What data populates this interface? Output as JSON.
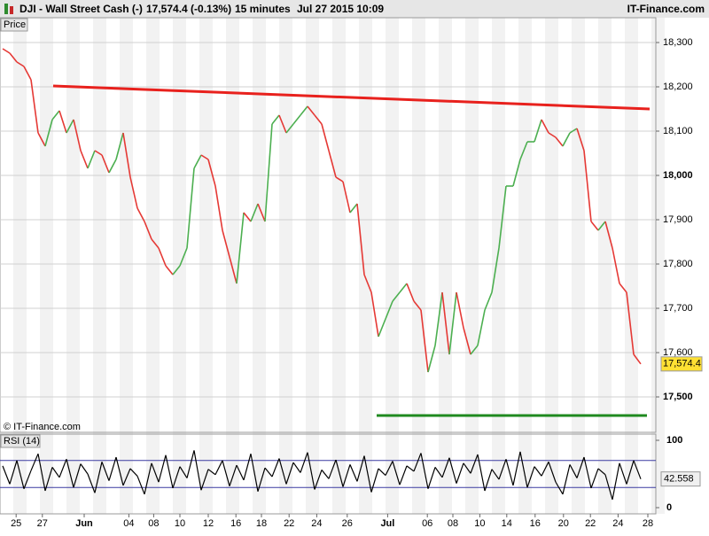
{
  "header": {
    "symbol": "DJI - Wall Street Cash (-)",
    "quote": "17,574.4 (-0.13%)",
    "interval": "15 minutes",
    "datetime": "Jul 27 2015 10:09",
    "brand": "IT-Finance.com"
  },
  "chart_data": [
    {
      "type": "line",
      "title": "Price",
      "credit": "© IT-Finance.com",
      "values": [
        18286,
        18276,
        18256,
        18246,
        18216,
        18096,
        18066,
        18126,
        18146,
        18096,
        18126,
        18056,
        18016,
        18056,
        18046,
        18006,
        18036,
        18096,
        17996,
        17926,
        17896,
        17856,
        17836,
        17796,
        17776,
        17796,
        17836,
        18016,
        18046,
        18036,
        17976,
        17876,
        17816,
        17756,
        17916,
        17896,
        17936,
        17896,
        18116,
        18136,
        18096,
        18116,
        18136,
        18156,
        18136,
        18116,
        18056,
        17996,
        17986,
        17916,
        17936,
        17776,
        17736,
        17636,
        17676,
        17716,
        17736,
        17756,
        17716,
        17696,
        17556,
        17616,
        17736,
        17596,
        17736,
        17656,
        17596,
        17616,
        17696,
        17736,
        17836,
        17976,
        17976,
        18036,
        18076,
        18076,
        18126,
        18096,
        18086,
        18066,
        18096,
        18106,
        18056,
        17896,
        17876,
        17896,
        17836,
        17756,
        17736,
        17596,
        17574.4
      ],
      "last_label": "17,574.4",
      "up_color": "#4caf50",
      "down_color": "#e53935",
      "xlim": [
        -0.375,
        92.125
      ],
      "ylim": [
        17420,
        18356
      ],
      "yticks": [
        {
          "value": 17500,
          "label": "17,500"
        },
        {
          "value": 17600,
          "label": "17,600"
        },
        {
          "value": 17700,
          "label": "17,700"
        },
        {
          "value": 17800,
          "label": "17,800"
        },
        {
          "value": 17900,
          "label": "17,900"
        },
        {
          "value": 18000,
          "label": "18,000"
        },
        {
          "value": 18100,
          "label": "18,100"
        },
        {
          "value": 18200,
          "label": "18,200"
        },
        {
          "value": 18300,
          "label": "18,300"
        }
      ],
      "xticks": [
        {
          "value": 1.9,
          "label": "25"
        },
        {
          "value": 5.6,
          "label": "27"
        },
        {
          "value": 11.5,
          "label": "Jun"
        },
        {
          "value": 17.8,
          "label": "04"
        },
        {
          "value": 21.3,
          "label": "08"
        },
        {
          "value": 25,
          "label": "10"
        },
        {
          "value": 29,
          "label": "12"
        },
        {
          "value": 32.9,
          "label": "16"
        },
        {
          "value": 36.5,
          "label": "18"
        },
        {
          "value": 40.4,
          "label": "22"
        },
        {
          "value": 44.3,
          "label": "24"
        },
        {
          "value": 48.6,
          "label": "26"
        },
        {
          "value": 54.3,
          "label": "Jul"
        },
        {
          "value": 59.9,
          "label": "06"
        },
        {
          "value": 63.5,
          "label": "08"
        },
        {
          "value": 67.3,
          "label": "10"
        },
        {
          "value": 71.1,
          "label": "14"
        },
        {
          "value": 75.1,
          "label": "16"
        },
        {
          "value": 79.1,
          "label": "20"
        },
        {
          "value": 82.9,
          "label": "22"
        },
        {
          "value": 86.8,
          "label": "24"
        },
        {
          "value": 91,
          "label": "28"
        }
      ],
      "trendlines": [
        {
          "color": "#e8211d",
          "x": [
            7.125,
            91.25
          ],
          "y": [
            18202,
            18150
          ]
        },
        {
          "color": "#1f8a1f",
          "x": [
            52.75,
            90.875
          ],
          "y": [
            17458,
            17458
          ]
        }
      ],
      "grid": true
    },
    {
      "type": "line",
      "title": "RSI (14)",
      "color": "#000000",
      "values": [
        62,
        35,
        70,
        28,
        55,
        80,
        25,
        60,
        45,
        72,
        30,
        65,
        50,
        22,
        68,
        40,
        75,
        33,
        58,
        47,
        20,
        66,
        38,
        78,
        29,
        61,
        44,
        85,
        26,
        57,
        49,
        70,
        32,
        63,
        41,
        80,
        24,
        59,
        46,
        73,
        35,
        67,
        52,
        82,
        27,
        56,
        43,
        71,
        31,
        64,
        39,
        77,
        23,
        58,
        48,
        69,
        34,
        62,
        54,
        81,
        28,
        60,
        45,
        74,
        36,
        66,
        51,
        79,
        25,
        57,
        42,
        72,
        33,
        83,
        30,
        61,
        47,
        68,
        38,
        20,
        64,
        44,
        75,
        29,
        58,
        49,
        12,
        66,
        35,
        70,
        42.558
      ],
      "last_label": "42.558",
      "ylim": [
        -9.2,
        109.2
      ],
      "yticks": [
        0,
        100
      ],
      "bands": [
        30,
        70
      ]
    }
  ]
}
